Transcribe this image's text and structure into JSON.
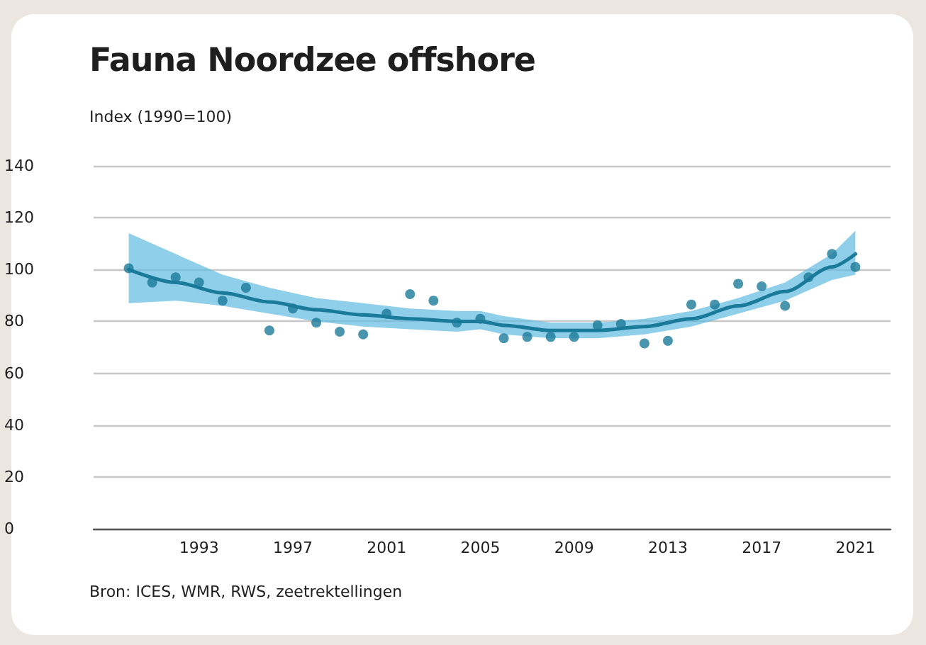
{
  "chart_data": {
    "type": "scatter",
    "title": "Fauna Noordzee offshore",
    "subtitle": "Index (1990=100)",
    "annotations": [
      "Bron: ICES, WMR, RWS, zeetrektellingen"
    ],
    "xlim": [
      1988.5,
      2022.5
    ],
    "xticks": [
      1993,
      1997,
      2001,
      2005,
      2009,
      2013,
      2017,
      2021
    ],
    "ylim": [
      0,
      140
    ],
    "yticks": [
      0,
      20,
      40,
      60,
      80,
      100,
      120,
      140
    ],
    "grid": "y",
    "series": [
      {
        "marker": "circle",
        "color": "#1a7a99",
        "x": [
          1990,
          1991,
          1992,
          1993,
          1994,
          1995,
          1996,
          1997,
          1998,
          1999,
          2000,
          2001,
          2002,
          2003,
          2004,
          2005,
          2006,
          2007,
          2008,
          2009,
          2010,
          2011,
          2012,
          2013,
          2014,
          2015,
          2016,
          2017,
          2018,
          2019,
          2020,
          2021
        ],
        "values": [
          100.5,
          95,
          97,
          95,
          88,
          93,
          76.5,
          85,
          79.5,
          76,
          75,
          83,
          90.5,
          88,
          79.5,
          81,
          73.5,
          74,
          74,
          74,
          78.5,
          79,
          71.5,
          72.5,
          86.5,
          86.5,
          94.5,
          93.5,
          86,
          97,
          106,
          101
        ]
      },
      {
        "type": "line",
        "marker": "none",
        "line_style": "solid",
        "color": "#1a7a99",
        "x": [
          1990,
          1992,
          1994,
          1996,
          1998,
          2000,
          2002,
          2004,
          2005,
          2006,
          2008,
          2010,
          2012,
          2014,
          2016,
          2018,
          2020,
          2021
        ],
        "values": [
          100,
          95,
          91,
          87.5,
          84.5,
          82.5,
          81,
          80,
          80,
          78.5,
          76.5,
          76.5,
          78,
          81,
          86,
          91.5,
          101,
          106
        ],
        "lower": [
          87,
          88,
          86,
          83,
          80,
          78,
          77,
          76,
          77,
          75,
          73.5,
          73.5,
          75,
          78,
          83,
          88,
          96,
          98
        ],
        "upper": [
          114,
          106,
          98,
          93,
          89,
          87,
          85,
          84,
          84,
          82,
          79.5,
          79.5,
          81,
          84,
          89,
          95,
          106,
          115
        ]
      }
    ]
  }
}
